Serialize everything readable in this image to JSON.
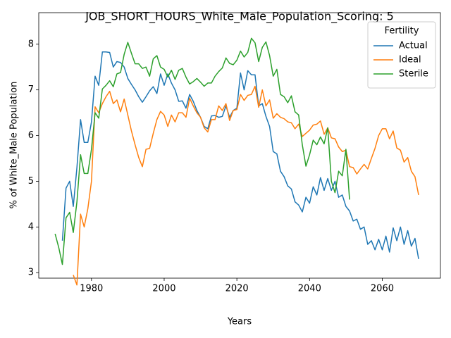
{
  "chart_data": {
    "type": "line",
    "title": "JOB_SHORT_HOURS_White_Male_Population_Scoring: 5",
    "xlabel": "Years",
    "ylabel": "% of White_Male Population",
    "legend_title": "Fertility",
    "legend": "upper right",
    "grid": false,
    "xlim": [
      1965.5,
      2076
    ],
    "ylim": [
      2.88,
      8.69
    ],
    "xticks": [
      1980,
      2000,
      2020,
      2040,
      2060
    ],
    "yticks": [
      3,
      4,
      5,
      6,
      7,
      8
    ],
    "x": [
      1970,
      1971,
      1972,
      1973,
      1974,
      1975,
      1976,
      1977,
      1978,
      1979,
      1980,
      1981,
      1982,
      1983,
      1984,
      1985,
      1986,
      1987,
      1988,
      1989,
      1990,
      1991,
      1992,
      1993,
      1994,
      1995,
      1996,
      1997,
      1998,
      1999,
      2000,
      2001,
      2002,
      2003,
      2004,
      2005,
      2006,
      2007,
      2008,
      2009,
      2010,
      2011,
      2012,
      2013,
      2014,
      2015,
      2016,
      2017,
      2018,
      2019,
      2020,
      2021,
      2022,
      2023,
      2024,
      2025,
      2026,
      2027,
      2028,
      2029,
      2030,
      2031,
      2032,
      2033,
      2034,
      2035,
      2036,
      2037,
      2038,
      2039,
      2040,
      2041,
      2042,
      2043,
      2044,
      2045,
      2046,
      2047,
      2048,
      2049,
      2050,
      2051,
      2052,
      2053,
      2054,
      2055,
      2056,
      2057,
      2058,
      2059,
      2060,
      2061,
      2062,
      2063,
      2064,
      2065,
      2066,
      2067,
      2068,
      2069,
      2070
    ],
    "series": [
      {
        "name": "Actual",
        "color": "#1f77b4",
        "values": [
          null,
          null,
          3.7,
          4.85,
          5.0,
          4.45,
          5.3,
          6.35,
          5.85,
          5.85,
          6.3,
          7.3,
          7.1,
          7.83,
          7.83,
          7.82,
          7.5,
          7.62,
          7.6,
          7.5,
          7.25,
          7.12,
          7.0,
          6.85,
          6.73,
          6.85,
          6.98,
          7.07,
          6.92,
          7.35,
          7.1,
          7.35,
          7.15,
          7.0,
          6.75,
          6.76,
          6.6,
          6.9,
          6.75,
          6.55,
          6.4,
          6.2,
          6.15,
          6.43,
          6.44,
          6.4,
          6.42,
          6.65,
          6.4,
          6.55,
          6.6,
          7.37,
          7.0,
          7.42,
          7.33,
          7.33,
          6.65,
          6.7,
          6.42,
          6.2,
          5.65,
          5.6,
          5.22,
          5.1,
          4.9,
          4.83,
          4.55,
          4.48,
          4.33,
          4.65,
          4.52,
          4.88,
          4.7,
          5.08,
          4.8,
          5.06,
          4.8,
          5.0,
          4.65,
          4.7,
          4.45,
          4.35,
          4.13,
          4.17,
          3.95,
          4.0,
          3.62,
          3.7,
          3.5,
          3.73,
          3.5,
          3.8,
          3.45,
          3.98,
          3.7,
          4.0,
          3.62,
          3.92,
          3.58,
          3.75,
          3.3
        ]
      },
      {
        "name": "Ideal",
        "color": "#ff7f0e",
        "values": [
          null,
          null,
          null,
          null,
          null,
          2.95,
          2.73,
          4.28,
          4.0,
          4.4,
          5.0,
          6.63,
          6.5,
          6.7,
          6.85,
          6.97,
          6.7,
          6.78,
          6.52,
          6.8,
          6.45,
          6.1,
          5.8,
          5.52,
          5.32,
          5.7,
          5.72,
          6.05,
          6.35,
          6.53,
          6.45,
          6.2,
          6.45,
          6.3,
          6.5,
          6.5,
          6.4,
          6.82,
          6.65,
          6.5,
          6.4,
          6.17,
          6.08,
          6.35,
          6.35,
          6.65,
          6.55,
          6.7,
          6.33,
          6.55,
          6.57,
          6.9,
          6.77,
          6.88,
          6.9,
          7.08,
          6.62,
          7.0,
          6.65,
          6.78,
          6.38,
          6.48,
          6.4,
          6.37,
          6.3,
          6.28,
          6.15,
          6.25,
          5.98,
          6.05,
          6.12,
          6.23,
          6.25,
          6.32,
          6.03,
          6.17,
          5.95,
          5.93,
          5.75,
          5.65,
          5.68,
          5.32,
          5.3,
          5.16,
          5.27,
          5.37,
          5.27,
          5.5,
          5.72,
          6.0,
          6.15,
          6.15,
          5.93,
          6.1,
          5.73,
          5.68,
          5.42,
          5.52,
          5.22,
          5.1,
          4.7
        ]
      },
      {
        "name": "Sterile",
        "color": "#2ca02c",
        "values": [
          3.85,
          3.55,
          3.18,
          4.2,
          4.32,
          3.88,
          4.55,
          5.58,
          5.17,
          5.17,
          5.7,
          6.5,
          6.38,
          7.02,
          7.1,
          7.2,
          7.07,
          7.35,
          7.38,
          7.78,
          8.04,
          7.8,
          7.57,
          7.57,
          7.47,
          7.5,
          7.3,
          7.68,
          7.75,
          7.5,
          7.45,
          7.28,
          7.43,
          7.23,
          7.43,
          7.47,
          7.28,
          7.13,
          7.18,
          7.25,
          7.17,
          7.08,
          7.15,
          7.15,
          7.3,
          7.4,
          7.48,
          7.7,
          7.58,
          7.55,
          7.65,
          7.85,
          7.72,
          7.82,
          8.13,
          8.03,
          7.62,
          7.93,
          8.05,
          7.75,
          7.3,
          7.45,
          6.9,
          6.85,
          6.72,
          6.87,
          6.52,
          6.45,
          5.8,
          5.33,
          5.58,
          5.9,
          5.8,
          5.97,
          5.82,
          6.17,
          5.0,
          4.75,
          5.22,
          5.12,
          5.7,
          4.6,
          null,
          null,
          null,
          null,
          null,
          null,
          null,
          null,
          null,
          null,
          null,
          null,
          null,
          null,
          null,
          null,
          null,
          null,
          null
        ]
      }
    ]
  }
}
